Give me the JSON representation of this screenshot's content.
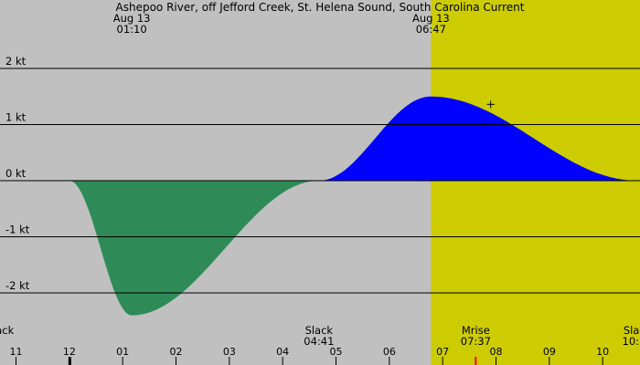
{
  "chart_data": {
    "type": "area",
    "title": "Ashepoo River, off Jefford Creek, St. Helena Sound, South Carolina Current",
    "unit": "kt",
    "x_range_hours": [
      22.7,
      34.7
    ],
    "ylim": [
      -2.9,
      3.2
    ],
    "y_ticks": [
      {
        "value": 2,
        "label": "2 kt"
      },
      {
        "value": 1,
        "label": "1 kt"
      },
      {
        "value": 0,
        "label": "0 kt"
      },
      {
        "value": -1,
        "label": "-1 kt"
      },
      {
        "value": -2,
        "label": "-2 kt"
      }
    ],
    "series": [
      {
        "t": 24.0,
        "v": 0
      },
      {
        "t": 25.17,
        "v": -2.4
      },
      {
        "t": 28.68,
        "v": 0
      },
      {
        "t": 30.78,
        "v": 1.5
      },
      {
        "t": 34.65,
        "v": 0
      },
      {
        "t": 37.5,
        "v": -2.25
      },
      {
        "t": 40.85,
        "v": 0
      },
      {
        "t": 43.08,
        "v": 1.75
      },
      {
        "t": 46.0,
        "v": 0
      }
    ],
    "day_shading": {
      "start": 30.78,
      "end": 43.08
    },
    "colors": {
      "night": "#c0c0c0",
      "day": "#cccc00",
      "flood": "#0000ff",
      "ebb": "#2e8b57",
      "moon_tick": "#ff0000"
    },
    "top_events": [
      {
        "t": 25.17,
        "date": "Aug 13",
        "time": "01:10"
      },
      {
        "t": 30.78,
        "date": "Aug 13",
        "time": "06:47"
      },
      {
        "t": 37.5,
        "date": "Aug 13",
        "time": "13:30"
      },
      {
        "t": 43.08,
        "date": "Aug 13",
        "time": "19:05"
      }
    ],
    "bottom_events": [
      {
        "t": 22.7,
        "name": "Slack",
        "time": ""
      },
      {
        "t": 28.68,
        "name": "Slack",
        "time": "04:41"
      },
      {
        "t": 31.62,
        "name": "Mrise",
        "time": "07:37"
      },
      {
        "t": 34.65,
        "name": "Slack",
        "time": "10:39"
      },
      {
        "t": 40.85,
        "name": "Slack",
        "time": "16:51"
      },
      {
        "t": 44.83,
        "name": "Mset",
        "time": "20:50"
      }
    ],
    "moon_markers": [
      31.62,
      44.83
    ],
    "tick_hours": [
      {
        "t": 23,
        "label": "11"
      },
      {
        "t": 24,
        "label": "12"
      },
      {
        "t": 25,
        "label": "01"
      },
      {
        "t": 26,
        "label": "02"
      },
      {
        "t": 27,
        "label": "03"
      },
      {
        "t": 28,
        "label": "04"
      },
      {
        "t": 29,
        "label": "05"
      },
      {
        "t": 30,
        "label": "06"
      },
      {
        "t": 31,
        "label": "07"
      },
      {
        "t": 32,
        "label": "08"
      },
      {
        "t": 33,
        "label": "09"
      },
      {
        "t": 34,
        "label": "10"
      },
      {
        "t": 35,
        "label": "11"
      },
      {
        "t": 36,
        "label": "12"
      },
      {
        "t": 37,
        "label": "01"
      },
      {
        "t": 38,
        "label": "02"
      },
      {
        "t": 39,
        "label": "03"
      },
      {
        "t": 40,
        "label": "04"
      },
      {
        "t": 41,
        "label": "05"
      },
      {
        "t": 42,
        "label": "06"
      },
      {
        "t": 43,
        "label": "07"
      },
      {
        "t": 44,
        "label": "08"
      },
      {
        "t": 45,
        "label": "09"
      }
    ],
    "midnight_hour": 24,
    "now_marker": {
      "t": 31.9,
      "v": 1.36
    }
  }
}
